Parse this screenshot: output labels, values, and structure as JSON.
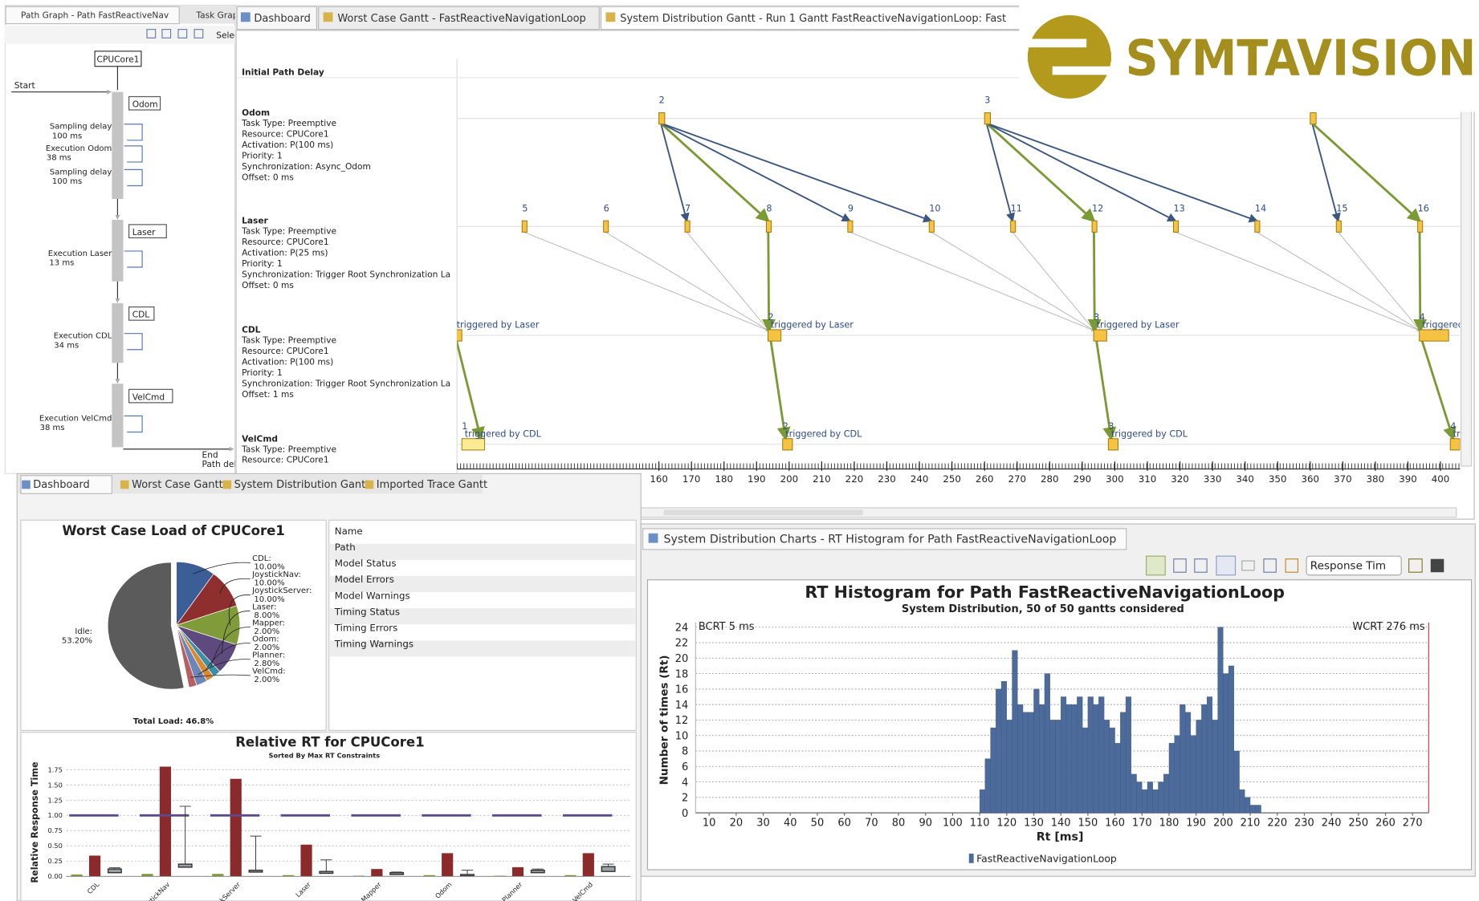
{
  "logo": "SYMTAVISION",
  "path_graph": {
    "tabs": [
      "Path Graph - Path FastReactiveNav",
      "Task Grap"
    ],
    "toolbar_label": "Selec",
    "resource": "CPUCore1",
    "start": "Start",
    "end": "End",
    "end_sub": "Path del",
    "tasks": [
      "Odom",
      "Laser",
      "CDL",
      "VelCmd"
    ],
    "steps": [
      {
        "label": "Sampling delay",
        "duration": "100 ms"
      },
      {
        "label": "Execution Odom",
        "duration": "38 ms"
      },
      {
        "label": "Sampling delay",
        "duration": "100 ms"
      },
      {
        "label": "Execution Laser",
        "duration": "13 ms"
      },
      {
        "label": "Execution CDL",
        "duration": "34 ms"
      },
      {
        "label": "Execution VelCmd",
        "duration": "38 ms"
      }
    ]
  },
  "gantt": {
    "tabs": [
      "Dashboard",
      "Worst Case Gantt - FastReactiveNavigationLoop",
      "System Distribution Gantt - Run 1 Gantt FastReactiveNavigationLoop: Fast"
    ],
    "initial_path_delay": "Initial Path Delay",
    "xlim": [
      98,
      406
    ],
    "xticks": [
      160,
      170,
      180,
      190,
      200,
      210,
      220,
      230,
      240,
      250,
      260,
      270,
      280,
      290,
      300,
      310,
      320,
      330,
      340,
      350,
      360,
      370,
      380,
      390,
      400
    ],
    "rows": [
      {
        "name": "Odom",
        "details": [
          "Task Type: Preemptive",
          "Resource: CPUCore1",
          "Activation: P(100 ms)",
          "Priority: 1",
          "Synchronization: Async_Odom",
          "Offset: 0 ms"
        ],
        "jobs": [
          {
            "label": "2",
            "start": 160,
            "end": 161.8
          },
          {
            "label": "3",
            "start": 260,
            "end": 261.8
          },
          {
            "label": null,
            "start": 360,
            "end": 361.8
          }
        ]
      },
      {
        "name": "Laser",
        "details": [
          "Task Type: Preemptive",
          "Resource: CPUCore1",
          "Activation: P(25 ms)",
          "Priority: 1",
          "Synchronization: Trigger Root Synchronization La",
          "Offset: 0 ms"
        ],
        "jobs": [
          {
            "label": "5",
            "start": 118,
            "end": 119.5
          },
          {
            "label": "6",
            "start": 143,
            "end": 144.5
          },
          {
            "label": "7",
            "start": 168,
            "end": 169.5
          },
          {
            "label": "8",
            "start": 193,
            "end": 194.5
          },
          {
            "label": "9",
            "start": 218,
            "end": 219.5
          },
          {
            "label": "10",
            "start": 243,
            "end": 244.5
          },
          {
            "label": "11",
            "start": 268,
            "end": 269.5
          },
          {
            "label": "12",
            "start": 293,
            "end": 294.5
          },
          {
            "label": "13",
            "start": 318,
            "end": 319.5
          },
          {
            "label": "14",
            "start": 343,
            "end": 344.5
          },
          {
            "label": "15",
            "start": 368,
            "end": 369.5
          },
          {
            "label": "16",
            "start": 393,
            "end": 394.5
          }
        ]
      },
      {
        "name": "CDL",
        "details": [
          "Task Type: Preemptive",
          "Resource: CPUCore1",
          "Activation: P(100 ms)",
          "Priority: 1",
          "Synchronization: Trigger Root Synchronization La",
          "Offset: 1 ms"
        ],
        "note": "triggered by Laser",
        "jobs": [
          {
            "label": null,
            "start": 97,
            "end": 99.5
          },
          {
            "label": "2",
            "start": 193.5,
            "end": 197.5
          },
          {
            "label": "3",
            "start": 293.5,
            "end": 297.5
          },
          {
            "label": "4",
            "start": 393.5,
            "end": 402.5
          }
        ]
      },
      {
        "name": "VelCmd",
        "details": [
          "Task Type: Preemptive",
          "Resource: CPUCore1"
        ],
        "note": "triggered by CDL",
        "jobs": [
          {
            "label": "1",
            "start": 99.5,
            "end": 106.5
          },
          {
            "label": "2",
            "start": 198,
            "end": 201
          },
          {
            "label": "3",
            "start": 298,
            "end": 301
          },
          {
            "label": "4",
            "start": 403,
            "end": 406
          }
        ]
      }
    ]
  },
  "dashboard": {
    "tabs": [
      "Dashboard",
      "Worst Case Gantt",
      "System Distribution Gantt",
      "Imported Trace Gantt"
    ],
    "properties": [
      "Name",
      "Path",
      "Model Status",
      "Model Errors",
      "Model Warnings",
      "Timing Status",
      "Timing Errors",
      "Timing Warnings"
    ]
  },
  "histogram_panel": {
    "tab": "System Distribution Charts - RT Histogram for Path FastReactiveNavigationLoop",
    "dropdown": "Response Tim"
  },
  "chart_data": [
    {
      "type": "pie",
      "title": "Worst Case Load of CPUCore1",
      "footer": "Total Load: 46.8%",
      "categories": [
        "CDL:",
        "JoystickNav:",
        "JoystickServer:",
        "Laser:",
        "Mapper:",
        "Odom:",
        "Planner:",
        "VelCmd:",
        "Idle:"
      ],
      "values": [
        10,
        10,
        10,
        8,
        2,
        2,
        2.8,
        2,
        53.2
      ],
      "value_labels": [
        "10.00%",
        "10.00%",
        "10.00%",
        "8.00%",
        "2.00%",
        "2.00%",
        "2.80%",
        "2.00%",
        "53.20%"
      ],
      "colors": [
        "#3b5e96",
        "#8e2e2e",
        "#7f9b3a",
        "#5f4a80",
        "#3a8fa8",
        "#d98a2e",
        "#6d86ba",
        "#b85f5f",
        "#5b5b5b"
      ],
      "explode": [
        0,
        0,
        0,
        0,
        0,
        0,
        0,
        0,
        0.08
      ]
    },
    {
      "type": "bar",
      "title": "Relative RT for CPUCore1",
      "subtitle": "Sorted By Max RT Constraints",
      "y_label": "Relative Response Time",
      "categories": [
        "CDL",
        "JoystickNav",
        "JoystickServer",
        "Laser",
        "Mapper",
        "Odom",
        "Planner",
        "VelCmd"
      ],
      "series": [
        {
          "color": "#7f9b3a",
          "values": [
            0.03,
            0.04,
            0.04,
            0.02,
            0.01,
            0.02,
            0.01,
            0.02
          ]
        },
        {
          "color": "#8b2a2a",
          "values": [
            0.34,
            1.8,
            1.6,
            0.52,
            0.12,
            0.38,
            0.15,
            0.38
          ]
        },
        {
          "color": "#5b4a8c",
          "style": "level",
          "values": [
            1,
            1,
            1,
            1,
            1,
            1,
            1,
            1
          ]
        }
      ],
      "boxes": {
        "color": "#333333",
        "low": [
          0.06,
          0.15,
          0.07,
          0.05,
          0.03,
          0.01,
          0.06,
          0.08
        ],
        "high": [
          0.12,
          0.2,
          0.1,
          0.08,
          0.06,
          0.03,
          0.1,
          0.16
        ],
        "whisker_high": [
          0.14,
          1.15,
          0.66,
          0.27,
          0.07,
          0.1,
          0.12,
          0.2
        ]
      },
      "ylim": [
        0,
        1.85
      ],
      "yticks": [
        {
          "value": 0,
          "label": "0.00"
        },
        {
          "value": 0.25,
          "label": "0.25"
        },
        {
          "value": 0.5,
          "label": "0.50"
        },
        {
          "value": 0.75,
          "label": "0.75"
        },
        {
          "value": 1,
          "label": "1.00"
        },
        {
          "value": 1.25,
          "label": "1.25"
        },
        {
          "value": 1.5,
          "label": "1.50"
        },
        {
          "value": 1.75,
          "label": "1.75"
        }
      ],
      "grid": true
    },
    {
      "type": "histogram",
      "title": "RT Histogram for Path FastReactiveNavigationLoop",
      "subtitle": "System Distribution, 50 of 50 gantts considered",
      "x_label": "Rt [ms]",
      "y_label": "Number of times (Rt)",
      "annotations": [
        "BCRT 5 ms",
        "WCRT 276 ms"
      ],
      "bins": [
        110,
        112,
        114,
        116,
        118,
        120,
        122,
        124,
        126,
        128,
        130,
        132,
        134,
        136,
        138,
        140,
        142,
        144,
        146,
        148,
        150,
        152,
        154,
        156,
        158,
        160,
        162,
        164,
        166,
        168,
        170,
        172,
        174,
        176,
        178,
        180,
        182,
        184,
        186,
        188,
        190,
        192,
        194,
        196,
        198,
        200,
        202,
        204,
        206,
        208,
        210,
        212,
        214
      ],
      "series": [
        {
          "name": "FastReactiveNavigationLoop",
          "color": "#4c6b9a",
          "values": [
            3,
            7,
            11,
            16,
            17,
            12,
            21,
            14,
            13,
            13,
            16,
            14,
            18,
            12,
            12,
            15,
            14,
            14,
            15,
            11,
            15,
            14,
            15,
            12,
            11,
            9,
            13,
            15,
            5,
            4,
            3,
            4,
            3,
            4,
            5,
            9,
            10,
            14,
            13,
            10,
            12,
            14,
            15,
            12,
            24,
            18,
            19,
            8,
            3,
            2,
            1,
            1
          ]
        }
      ],
      "xlim": [
        5,
        276
      ],
      "xticks": [
        10,
        20,
        30,
        40,
        50,
        60,
        70,
        80,
        90,
        100,
        110,
        120,
        130,
        140,
        150,
        160,
        170,
        180,
        190,
        200,
        210,
        220,
        230,
        240,
        250,
        260,
        270
      ],
      "ylim": [
        0,
        24
      ],
      "yticks": [
        0,
        2,
        4,
        6,
        8,
        10,
        12,
        14,
        16,
        18,
        20,
        22,
        24
      ],
      "grid": true
    }
  ]
}
